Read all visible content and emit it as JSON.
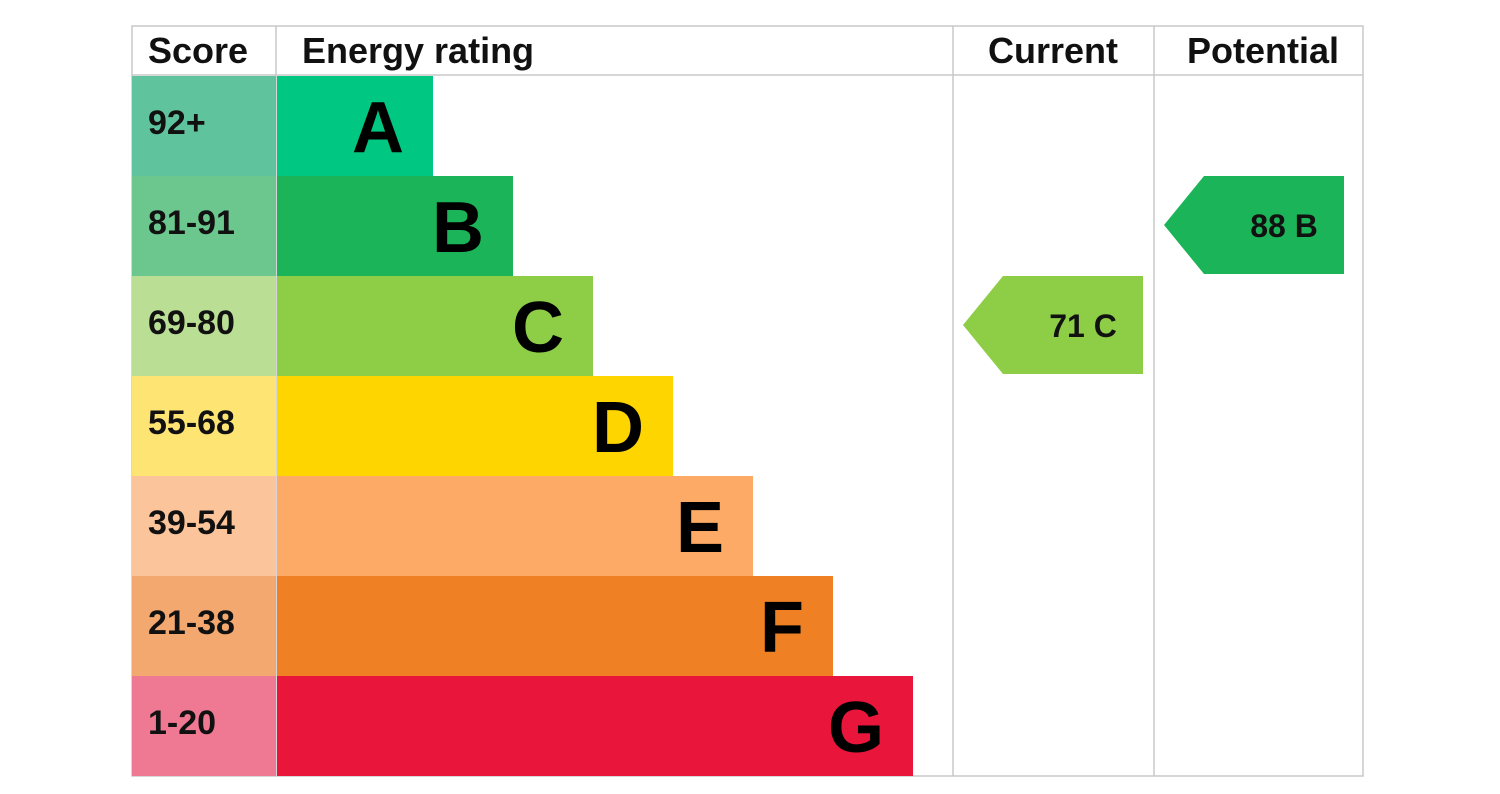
{
  "headers": {
    "score": "Score",
    "rating": "Energy rating",
    "current": "Current",
    "potential": "Potential"
  },
  "chart_data": {
    "type": "bar",
    "bands": [
      {
        "letter": "A",
        "score": "92+",
        "bar_color": "#00c781",
        "score_color": "#5fc39d"
      },
      {
        "letter": "B",
        "score": "81-91",
        "bar_color": "#1cb459",
        "score_color": "#6cc78e"
      },
      {
        "letter": "C",
        "score": "69-80",
        "bar_color": "#8dce46",
        "score_color": "#badf94"
      },
      {
        "letter": "D",
        "score": "55-68",
        "bar_color": "#ffd500",
        "score_color": "#fde473"
      },
      {
        "letter": "E",
        "score": "39-54",
        "bar_color": "#fcaa65",
        "score_color": "#fbc49a"
      },
      {
        "letter": "F",
        "score": "21-38",
        "bar_color": "#ef8023",
        "score_color": "#f3a870"
      },
      {
        "letter": "G",
        "score": "1-20",
        "bar_color": "#e9153b",
        "score_color": "#ef7892"
      }
    ],
    "current": {
      "value": 71,
      "band": "C",
      "label": "71  C",
      "color": "#8dce46"
    },
    "potential": {
      "value": 88,
      "band": "B",
      "label": "88  B",
      "color": "#1cb459"
    }
  }
}
